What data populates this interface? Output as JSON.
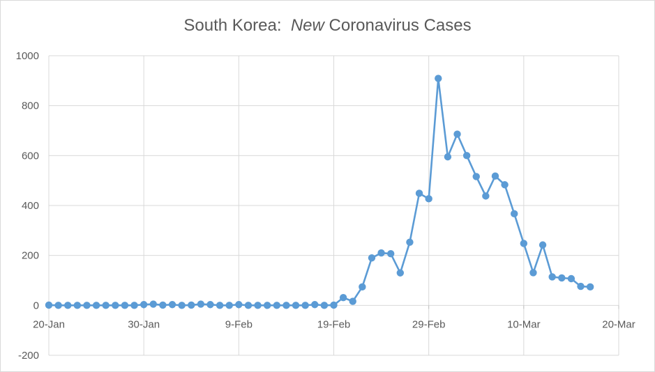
{
  "chart_data": {
    "type": "line",
    "title_parts": {
      "prefix": "South Korea:  ",
      "emphasis": "New",
      "suffix": " Coronavirus Cases"
    },
    "xlabel": "",
    "ylabel": "",
    "x_start": "2020-01-20",
    "x_ticks": [
      "20-Jan",
      "30-Jan",
      "9-Feb",
      "19-Feb",
      "29-Feb",
      "10-Mar",
      "20-Mar"
    ],
    "xlim": [
      "2020-01-20",
      "2020-03-20"
    ],
    "ylim": [
      -200,
      1000
    ],
    "y_ticks": [
      -200,
      0,
      200,
      400,
      600,
      800,
      1000
    ],
    "grid": true,
    "legend": "none",
    "series_color": "#5b9bd5",
    "series": [
      {
        "values": [
          1,
          0,
          0,
          0,
          0,
          0,
          0,
          0,
          0,
          0,
          3,
          5,
          1,
          3,
          0,
          1,
          5,
          3,
          0,
          0,
          3,
          0,
          0,
          0,
          0,
          0,
          0,
          0,
          3,
          0,
          1,
          31,
          16,
          74,
          190,
          210,
          207,
          130,
          253,
          449,
          427,
          909,
          595,
          686,
          600,
          516,
          438,
          518,
          483,
          367,
          248,
          131,
          242,
          114,
          110,
          107,
          76,
          74
        ]
      }
    ]
  }
}
